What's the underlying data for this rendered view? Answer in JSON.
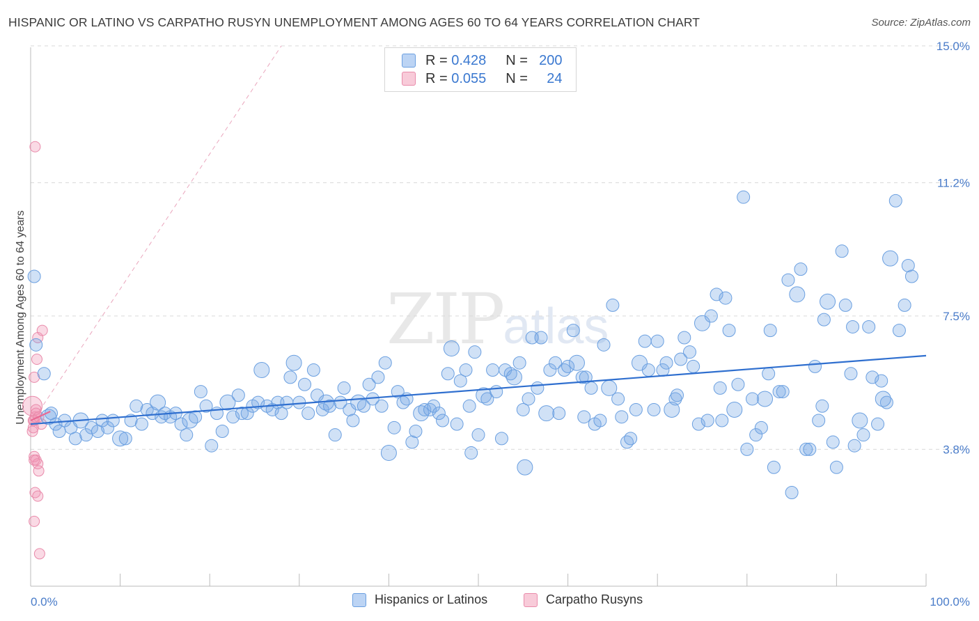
{
  "header": {
    "title": "HISPANIC OR LATINO VS CARPATHO RUSYN UNEMPLOYMENT AMONG AGES 60 TO 64 YEARS CORRELATION CHART",
    "source": "Source: ZipAtlas.com"
  },
  "watermark": {
    "zip": "ZIP",
    "atlas": "atlas"
  },
  "legend_top": {
    "rows": [
      {
        "r_label": "R =",
        "r_value": "0.428",
        "n_label": "N =",
        "n_value": "200",
        "color": "#a9c8f0"
      },
      {
        "r_label": "R =",
        "r_value": "0.055",
        "n_label": "N =",
        "n_value": "24",
        "color": "#f6b9cc"
      }
    ]
  },
  "legend_bottom": {
    "items": [
      {
        "label": "Hispanics or Latinos",
        "color": "#a9c8f0"
      },
      {
        "label": "Carpatho Rusyns",
        "color": "#f6b9cc"
      }
    ]
  },
  "colors": {
    "blue_fill": "rgba(120,170,230,0.35)",
    "blue_stroke": "#6a9fe0",
    "blue_line": "#2f6fcf",
    "pink_fill": "rgba(240,150,180,0.35)",
    "pink_stroke": "#e98aaa",
    "pink_line": "#e86a94"
  },
  "chart_data": {
    "type": "scatter",
    "title": "HISPANIC OR LATINO VS CARPATHO RUSYN UNEMPLOYMENT AMONG AGES 60 TO 64 YEARS CORRELATION CHART",
    "xlabel": "",
    "ylabel": "Unemployment Among Ages 60 to 64 years",
    "xlim": [
      0,
      100
    ],
    "ylim": [
      0,
      15.5
    ],
    "x_tick_labels": [
      "0.0%",
      "100.0%"
    ],
    "y_ticks": [
      3.8,
      7.5,
      11.2,
      15.0
    ],
    "y_tick_labels": [
      "3.8%",
      "7.5%",
      "11.2%",
      "15.0%"
    ],
    "grid": "horizontal dashed",
    "legend_position": "top-center",
    "series": [
      {
        "name": "Hispanics or Latinos",
        "r": 0.428,
        "n": 200,
        "trend": {
          "x": [
            0,
            100
          ],
          "y": [
            4.5,
            6.4
          ]
        },
        "points": [
          [
            0.4,
            8.6
          ],
          [
            0.6,
            6.7
          ],
          [
            1.5,
            5.9
          ],
          [
            2.0,
            4.7
          ],
          [
            2.3,
            4.8
          ],
          [
            2.8,
            4.5
          ],
          [
            3.2,
            4.3
          ],
          [
            3.8,
            4.6
          ],
          [
            4.5,
            4.4
          ],
          [
            5.0,
            4.1
          ],
          [
            5.6,
            4.6
          ],
          [
            6.2,
            4.2
          ],
          [
            6.8,
            4.4
          ],
          [
            7.5,
            4.3
          ],
          [
            8.0,
            4.6
          ],
          [
            8.6,
            4.4
          ],
          [
            9.2,
            4.6
          ],
          [
            10.0,
            4.1
          ],
          [
            10.6,
            4.1
          ],
          [
            11.2,
            4.6
          ],
          [
            11.8,
            5.0
          ],
          [
            12.4,
            4.5
          ],
          [
            13.0,
            4.9
          ],
          [
            13.6,
            4.8
          ],
          [
            14.2,
            5.1
          ],
          [
            14.6,
            4.7
          ],
          [
            15.0,
            4.8
          ],
          [
            15.6,
            4.7
          ],
          [
            16.2,
            4.8
          ],
          [
            16.8,
            4.5
          ],
          [
            17.4,
            4.2
          ],
          [
            17.8,
            4.6
          ],
          [
            18.4,
            4.7
          ],
          [
            19.0,
            5.4
          ],
          [
            19.6,
            5.0
          ],
          [
            20.2,
            3.9
          ],
          [
            20.8,
            4.8
          ],
          [
            21.4,
            4.3
          ],
          [
            22.0,
            5.1
          ],
          [
            22.6,
            4.7
          ],
          [
            23.2,
            5.3
          ],
          [
            23.6,
            4.8
          ],
          [
            24.2,
            4.8
          ],
          [
            24.8,
            5.0
          ],
          [
            25.4,
            5.1
          ],
          [
            25.8,
            6.0
          ],
          [
            26.4,
            5.0
          ],
          [
            27.0,
            4.9
          ],
          [
            27.6,
            5.1
          ],
          [
            28.0,
            4.8
          ],
          [
            28.6,
            5.1
          ],
          [
            29.0,
            5.8
          ],
          [
            29.4,
            6.2
          ],
          [
            30.0,
            5.1
          ],
          [
            30.6,
            5.6
          ],
          [
            31.0,
            4.8
          ],
          [
            31.6,
            6.0
          ],
          [
            32.0,
            5.3
          ],
          [
            32.6,
            4.9
          ],
          [
            33.0,
            5.1
          ],
          [
            33.4,
            5.0
          ],
          [
            34.0,
            4.2
          ],
          [
            34.6,
            5.1
          ],
          [
            35.0,
            5.5
          ],
          [
            35.6,
            4.9
          ],
          [
            36.0,
            4.6
          ],
          [
            36.6,
            5.1
          ],
          [
            37.2,
            5.0
          ],
          [
            37.8,
            5.6
          ],
          [
            38.2,
            5.2
          ],
          [
            38.8,
            5.8
          ],
          [
            39.2,
            5.0
          ],
          [
            39.6,
            6.2
          ],
          [
            40.0,
            3.7
          ],
          [
            40.6,
            4.4
          ],
          [
            41.0,
            5.4
          ],
          [
            41.6,
            5.1
          ],
          [
            42.0,
            5.2
          ],
          [
            42.6,
            4.0
          ],
          [
            43.0,
            4.3
          ],
          [
            43.6,
            4.8
          ],
          [
            44.0,
            4.9
          ],
          [
            44.6,
            4.9
          ],
          [
            45.0,
            5.0
          ],
          [
            45.6,
            4.8
          ],
          [
            46.0,
            4.6
          ],
          [
            46.6,
            5.9
          ],
          [
            47.0,
            6.6
          ],
          [
            47.6,
            4.5
          ],
          [
            48.0,
            5.7
          ],
          [
            48.6,
            6.0
          ],
          [
            49.0,
            5.0
          ],
          [
            49.6,
            6.5
          ],
          [
            50.0,
            4.2
          ],
          [
            50.6,
            5.3
          ],
          [
            51.0,
            5.2
          ],
          [
            51.6,
            6.0
          ],
          [
            52.0,
            5.4
          ],
          [
            52.6,
            4.1
          ],
          [
            53.0,
            6.0
          ],
          [
            53.6,
            5.9
          ],
          [
            54.0,
            5.8
          ],
          [
            54.6,
            6.2
          ],
          [
            55.0,
            4.9
          ],
          [
            55.6,
            5.2
          ],
          [
            56.0,
            6.9
          ],
          [
            56.6,
            5.5
          ],
          [
            57.0,
            6.9
          ],
          [
            57.6,
            4.8
          ],
          [
            58.0,
            6.0
          ],
          [
            58.6,
            6.2
          ],
          [
            59.0,
            4.8
          ],
          [
            59.6,
            6.0
          ],
          [
            60.0,
            6.1
          ],
          [
            60.6,
            7.1
          ],
          [
            61.0,
            6.2
          ],
          [
            61.6,
            5.8
          ],
          [
            62.0,
            5.8
          ],
          [
            62.6,
            5.5
          ],
          [
            63.0,
            4.5
          ],
          [
            63.6,
            4.6
          ],
          [
            64.0,
            6.7
          ],
          [
            64.6,
            5.5
          ],
          [
            65.0,
            7.8
          ],
          [
            65.6,
            5.2
          ],
          [
            66.0,
            4.7
          ],
          [
            66.6,
            4.0
          ],
          [
            67.0,
            4.1
          ],
          [
            67.6,
            4.9
          ],
          [
            68.0,
            6.2
          ],
          [
            68.6,
            6.8
          ],
          [
            69.0,
            6.0
          ],
          [
            69.6,
            4.9
          ],
          [
            70.0,
            6.8
          ],
          [
            70.6,
            6.0
          ],
          [
            71.0,
            6.2
          ],
          [
            71.6,
            4.9
          ],
          [
            72.0,
            5.2
          ],
          [
            72.6,
            6.3
          ],
          [
            73.0,
            6.9
          ],
          [
            73.6,
            6.5
          ],
          [
            74.0,
            6.1
          ],
          [
            74.6,
            4.5
          ],
          [
            75.0,
            7.3
          ],
          [
            75.6,
            4.6
          ],
          [
            76.0,
            7.5
          ],
          [
            76.6,
            8.1
          ],
          [
            77.0,
            5.5
          ],
          [
            77.6,
            8.0
          ],
          [
            78.0,
            7.1
          ],
          [
            78.6,
            4.9
          ],
          [
            79.0,
            5.6
          ],
          [
            79.6,
            10.8
          ],
          [
            80.0,
            3.8
          ],
          [
            80.6,
            5.2
          ],
          [
            81.0,
            4.2
          ],
          [
            81.6,
            4.4
          ],
          [
            82.0,
            5.2
          ],
          [
            82.6,
            7.1
          ],
          [
            83.0,
            3.3
          ],
          [
            83.6,
            5.4
          ],
          [
            84.0,
            5.4
          ],
          [
            84.6,
            8.5
          ],
          [
            85.0,
            2.6
          ],
          [
            85.6,
            8.1
          ],
          [
            86.0,
            8.8
          ],
          [
            86.6,
            3.8
          ],
          [
            87.0,
            3.8
          ],
          [
            87.6,
            6.1
          ],
          [
            88.0,
            4.6
          ],
          [
            88.6,
            7.4
          ],
          [
            89.0,
            7.9
          ],
          [
            89.6,
            4.0
          ],
          [
            90.0,
            3.3
          ],
          [
            90.6,
            9.3
          ],
          [
            91.0,
            7.8
          ],
          [
            91.6,
            5.9
          ],
          [
            92.0,
            3.9
          ],
          [
            92.6,
            4.6
          ],
          [
            93.0,
            4.2
          ],
          [
            93.6,
            7.2
          ],
          [
            94.0,
            5.8
          ],
          [
            94.6,
            4.5
          ],
          [
            95.0,
            5.7
          ],
          [
            95.6,
            5.1
          ],
          [
            96.0,
            9.1
          ],
          [
            96.6,
            10.7
          ],
          [
            97.0,
            7.1
          ],
          [
            97.6,
            7.8
          ],
          [
            98.0,
            8.9
          ],
          [
            98.4,
            8.6
          ],
          [
            49.2,
            3.7
          ],
          [
            55.2,
            3.3
          ],
          [
            61.8,
            4.7
          ],
          [
            72.2,
            5.3
          ],
          [
            77.2,
            4.6
          ],
          [
            82.4,
            5.9
          ],
          [
            88.4,
            5.0
          ],
          [
            91.8,
            7.2
          ],
          [
            95.2,
            5.2
          ]
        ]
      },
      {
        "name": "Carpatho Rusyns",
        "r": 0.055,
        "n": 24,
        "trend": {
          "x": [
            0,
            2.2
          ],
          "y": [
            4.6,
            4.85
          ]
        },
        "points": [
          [
            0.2,
            5.0
          ],
          [
            0.4,
            4.6
          ],
          [
            0.3,
            4.4
          ],
          [
            0.5,
            4.7
          ],
          [
            0.6,
            4.9
          ],
          [
            0.4,
            5.8
          ],
          [
            0.7,
            6.3
          ],
          [
            0.8,
            6.9
          ],
          [
            0.5,
            12.2
          ],
          [
            1.3,
            7.1
          ],
          [
            0.2,
            4.3
          ],
          [
            0.4,
            3.6
          ],
          [
            0.6,
            3.5
          ],
          [
            0.8,
            3.4
          ],
          [
            0.9,
            3.2
          ],
          [
            0.5,
            2.6
          ],
          [
            0.8,
            2.5
          ],
          [
            0.4,
            1.8
          ],
          [
            1.0,
            0.9
          ],
          [
            0.3,
            4.6
          ],
          [
            0.6,
            4.8
          ],
          [
            1.2,
            4.5
          ],
          [
            0.9,
            4.7
          ],
          [
            0.4,
            3.5
          ]
        ]
      }
    ],
    "diagonal_reference": {
      "x": [
        0,
        28
      ],
      "y": [
        4.5,
        15.0
      ]
    }
  }
}
